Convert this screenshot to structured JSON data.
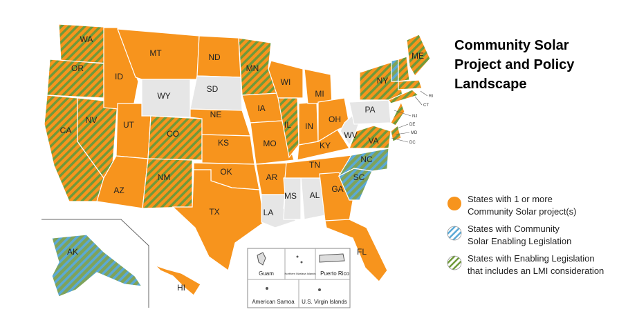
{
  "map": {
    "title": [
      "Community Solar",
      "Project and Policy",
      "Landscape"
    ],
    "legend": [
      {
        "key": "project",
        "lines": [
          "States with 1 or more",
          "Community Solar project(s)"
        ]
      },
      {
        "key": "enabling",
        "lines": [
          "States with Community",
          "Solar Enabling Legislation"
        ]
      },
      {
        "key": "lmi",
        "lines": [
          "States with Enabling Legislation",
          "that includes an LMI consideration"
        ]
      }
    ],
    "states": [
      {
        "label": "WA",
        "status": "lmi"
      },
      {
        "label": "OR",
        "status": "lmi"
      },
      {
        "label": "CA",
        "status": "lmi"
      },
      {
        "label": "NV",
        "status": "lmi"
      },
      {
        "label": "ID",
        "status": "project"
      },
      {
        "label": "MT",
        "status": "project"
      },
      {
        "label": "WY",
        "status": "none"
      },
      {
        "label": "UT",
        "status": "project"
      },
      {
        "label": "CO",
        "status": "lmi"
      },
      {
        "label": "AZ",
        "status": "project"
      },
      {
        "label": "NM",
        "status": "lmi"
      },
      {
        "label": "ND",
        "status": "project"
      },
      {
        "label": "SD",
        "status": "none"
      },
      {
        "label": "NE",
        "status": "project"
      },
      {
        "label": "KS",
        "status": "project"
      },
      {
        "label": "OK",
        "status": "project"
      },
      {
        "label": "TX",
        "status": "project"
      },
      {
        "label": "MN",
        "status": "lmi"
      },
      {
        "label": "IA",
        "status": "project"
      },
      {
        "label": "MO",
        "status": "project"
      },
      {
        "label": "AR",
        "status": "project"
      },
      {
        "label": "LA",
        "status": "none"
      },
      {
        "label": "WI",
        "status": "project"
      },
      {
        "label": "IL",
        "status": "lmi"
      },
      {
        "label": "MS",
        "status": "none"
      },
      {
        "label": "AL",
        "status": "none"
      },
      {
        "label": "TN",
        "status": "project"
      },
      {
        "label": "KY",
        "status": "project"
      },
      {
        "label": "IN",
        "status": "project"
      },
      {
        "label": "MI",
        "status": "project"
      },
      {
        "label": "OH",
        "status": "project"
      },
      {
        "label": "GA",
        "status": "project"
      },
      {
        "label": "FL",
        "status": "project"
      },
      {
        "label": "SC",
        "status": "enabling"
      },
      {
        "label": "NC",
        "status": "enabling"
      },
      {
        "label": "VA",
        "status": "lmi"
      },
      {
        "label": "WV",
        "status": "none"
      },
      {
        "label": "PA",
        "status": "none"
      },
      {
        "label": "NY",
        "status": "lmi"
      },
      {
        "label": "ME",
        "status": "lmi"
      },
      {
        "label": "AK",
        "status": "enabling"
      },
      {
        "label": "HI",
        "status": "project"
      }
    ],
    "unlabeled_states": [
      {
        "status": "enabling"
      },
      {
        "status": "lmi"
      },
      {
        "status": "lmi"
      },
      {
        "status": "lmi"
      },
      {
        "status": "lmi"
      },
      {
        "status": "lmi"
      }
    ],
    "callouts": [
      "RI",
      "CT",
      "NJ",
      "DE",
      "MD",
      "DC"
    ],
    "territories": [
      "Guam",
      "Northern Mariana Islands",
      "Puerto Rico",
      "American Samoa",
      "U.S. Virgin Islands"
    ]
  }
}
